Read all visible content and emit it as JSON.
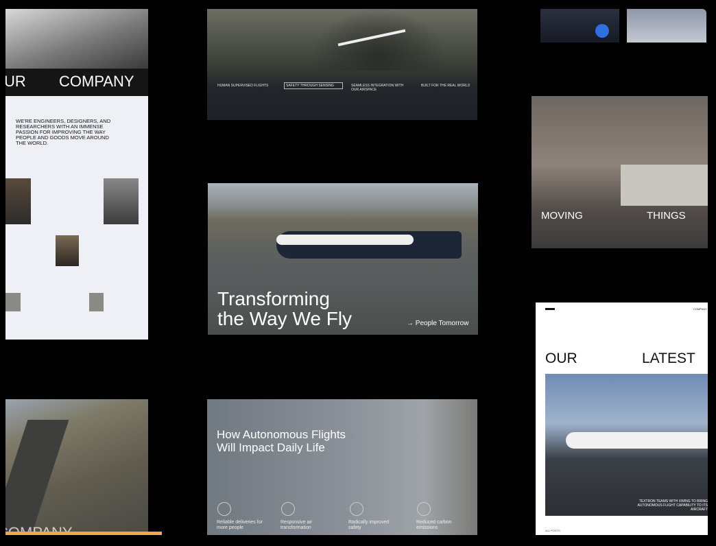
{
  "panels": {
    "company": {
      "heading_left": "UR",
      "heading_right": "COMPANY",
      "statement": "WE'RE ENGINEERS, DESIGNERS, AND RESEARCHERS WITH AN IMMENSE PASSION FOR IMPROVING THE WAY PEOPLE AND GOODS MOVE AROUND THE WORLD."
    },
    "features": {
      "items": [
        "HUMAN SUPERVISED FLIGHTS",
        "SAFETY THROUGH SENSING",
        "SEAMLESS INTEGRATION WITH OUR AIRSPACE",
        "BUILT FOR THE REAL WORLD"
      ]
    },
    "hero": {
      "title_line1": "Transforming",
      "title_line2": "the Way We Fly",
      "link": "→ People Tomorrow"
    },
    "moving": {
      "left": "MOVING",
      "right": "THINGS"
    },
    "news": {
      "nav": "COMPANY",
      "left": "OUR",
      "right": "LATEST",
      "headline": "TEXTRON TEAMS WITH XWING TO BRING AUTONOMOUS FLIGHT CAPABILITY TO ITS AIRCRAFT",
      "filter": "ALL POSTS"
    },
    "impact": {
      "title_line1": "How Autonomous Flights",
      "title_line2": "Will Impact Daily Life",
      "items": [
        "Reliable deliveries for more people",
        "Responsive air transformation",
        "Radically improved safety",
        "Reduced carbon emissions"
      ]
    },
    "runway": {
      "heading": "COMPANY"
    }
  }
}
